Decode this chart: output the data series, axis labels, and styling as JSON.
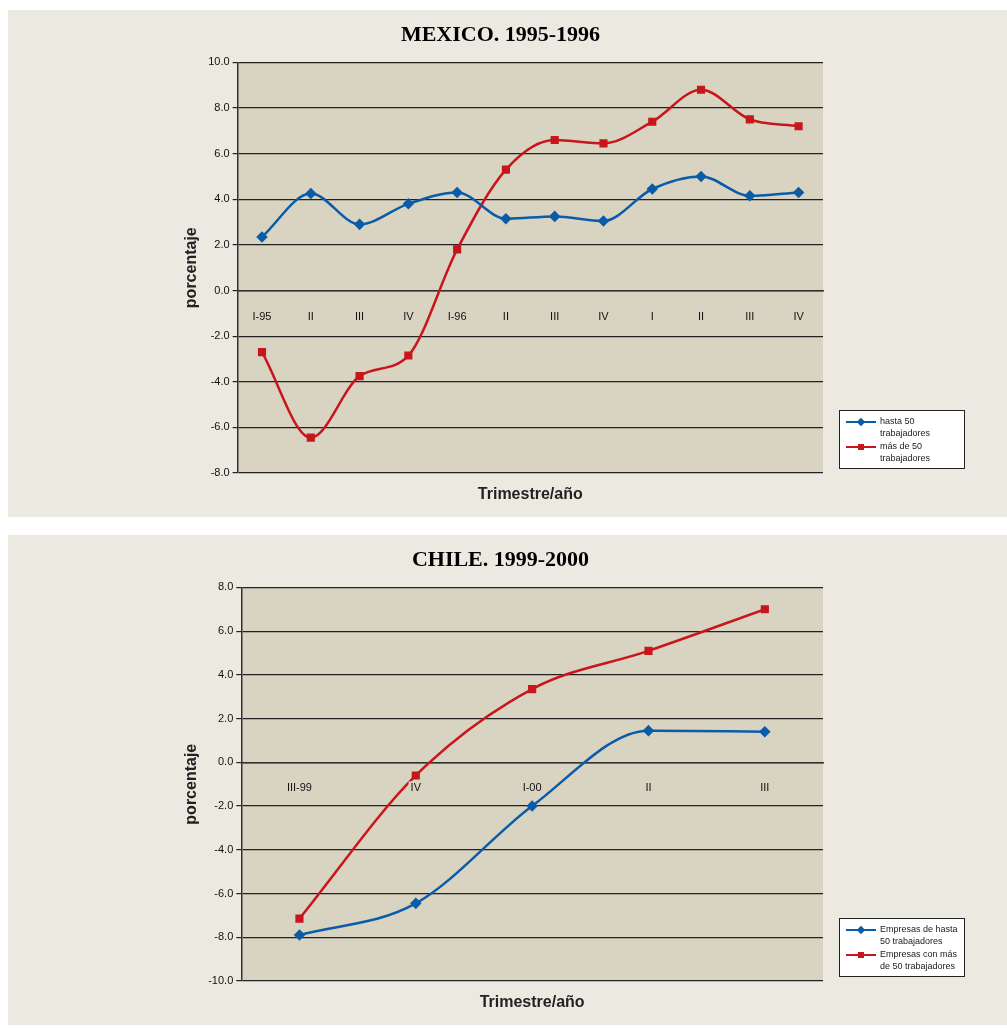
{
  "chart_data": [
    {
      "type": "line",
      "title": "MEXICO. 1995-1996",
      "xlabel": "Trimestre/año",
      "ylabel": "porcentaje",
      "categories": [
        "I-95",
        "II",
        "III",
        "IV",
        "I-96",
        "II",
        "III",
        "IV",
        "I",
        "II",
        "III",
        "IV"
      ],
      "series": [
        {
          "name": "hasta 50 trabajadores",
          "color": "#0b5ca8",
          "marker": "diamond",
          "values": [
            2.35,
            4.25,
            2.9,
            3.8,
            4.3,
            3.15,
            3.25,
            3.05,
            4.45,
            5.0,
            4.15,
            4.3
          ]
        },
        {
          "name": "más de 50 trabajadores",
          "color": "#c8161d",
          "marker": "square",
          "values": [
            -2.7,
            -6.45,
            -3.75,
            -2.85,
            1.8,
            5.3,
            6.6,
            6.45,
            7.4,
            8.8,
            7.5,
            7.2
          ]
        }
      ],
      "ylim": [
        -8,
        10
      ],
      "yticks": [
        {
          "value": -8,
          "label": "-8.0"
        },
        {
          "value": -6,
          "label": "-6.0"
        },
        {
          "value": -4,
          "label": "-4.0"
        },
        {
          "value": -2,
          "label": "-2.0"
        },
        {
          "value": 0,
          "label": "0.0"
        },
        {
          "value": 2,
          "label": "2.0"
        },
        {
          "value": 4,
          "label": "4.0"
        },
        {
          "value": 6,
          "label": "6.0"
        },
        {
          "value": 8,
          "label": "8.0"
        },
        {
          "value": 10,
          "label": "10.0"
        }
      ],
      "grid": "y",
      "legend": "bottom right"
    },
    {
      "type": "line",
      "title": "CHILE. 1999-2000",
      "xlabel": "Trimestre/año",
      "ylabel": "porcentaje",
      "categories": [
        "III-99",
        "IV",
        "I-00",
        "II",
        "III"
      ],
      "series": [
        {
          "name": "Empresas de hasta 50 trabajadores",
          "color": "#0b5ca8",
          "marker": "diamond",
          "values": [
            -7.9,
            -6.45,
            -2.0,
            1.45,
            1.4
          ]
        },
        {
          "name": "Empresas con más de 50 trabajadores",
          "color": "#c8161d",
          "marker": "square",
          "values": [
            -7.15,
            -0.6,
            3.35,
            5.1,
            7.0
          ]
        }
      ],
      "ylim": [
        -10,
        8
      ],
      "yticks": [
        {
          "value": -10,
          "label": "-10.0"
        },
        {
          "value": -8,
          "label": "-8.0"
        },
        {
          "value": -6,
          "label": "-6.0"
        },
        {
          "value": -4,
          "label": "-4.0"
        },
        {
          "value": -2,
          "label": "-2.0"
        },
        {
          "value": 0,
          "label": "0.0"
        },
        {
          "value": 2,
          "label": "2.0"
        },
        {
          "value": 4,
          "label": "4.0"
        },
        {
          "value": 6,
          "label": "6.0"
        },
        {
          "value": 8,
          "label": "8.0"
        }
      ],
      "grid": "y",
      "legend": "bottom right"
    }
  ]
}
